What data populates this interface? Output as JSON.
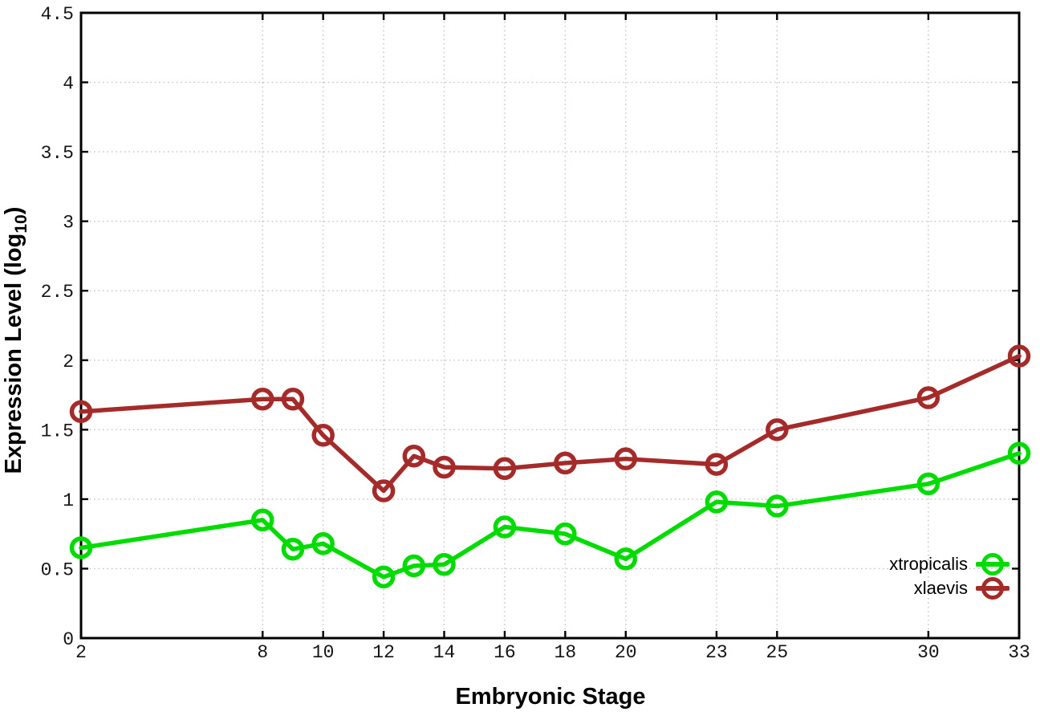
{
  "figure": {
    "background_color": "#ffffff"
  },
  "chart_data": {
    "type": "line",
    "title": "",
    "xlabel": "Embryonic Stage",
    "ylabel": "Expression Level (log10)",
    "ylabel_parts": {
      "prefix": "Expression Level (log",
      "subscript": "10",
      "suffix": ")"
    },
    "xlim": [
      2,
      33
    ],
    "ylim": [
      0,
      4.5
    ],
    "x_ticks": [
      2,
      8,
      10,
      12,
      14,
      16,
      18,
      20,
      23,
      25,
      30,
      33
    ],
    "y_ticks": [
      0,
      0.5,
      1,
      1.5,
      2,
      2.5,
      3,
      3.5,
      4,
      4.5
    ],
    "y_tick_labels": [
      "0",
      "0.5",
      "1",
      "1.5",
      "2",
      "2.5",
      "3",
      "3.5",
      "4",
      "4.5"
    ],
    "grid": true,
    "grid_style": "dotted",
    "legend_position": "inside-bottom-right",
    "x": [
      2,
      8,
      9,
      10,
      12,
      13,
      14,
      16,
      18,
      20,
      23,
      25,
      30,
      33
    ],
    "series": [
      {
        "name": "xtropicalis",
        "color": "#00DB00",
        "marker": "open-circle",
        "values": [
          0.65,
          0.85,
          0.64,
          0.68,
          0.44,
          0.52,
          0.53,
          0.8,
          0.75,
          0.57,
          0.98,
          0.95,
          1.11,
          1.33
        ]
      },
      {
        "name": "xlaevis",
        "color": "#A52A2A",
        "marker": "open-circle",
        "values": [
          1.63,
          1.72,
          1.72,
          1.46,
          1.06,
          1.31,
          1.23,
          1.22,
          1.26,
          1.29,
          1.25,
          1.5,
          1.73,
          2.03
        ]
      }
    ],
    "colors": {
      "grid": "#c4c4c4",
      "axis": "#000000",
      "tick_text": "#141414"
    }
  }
}
